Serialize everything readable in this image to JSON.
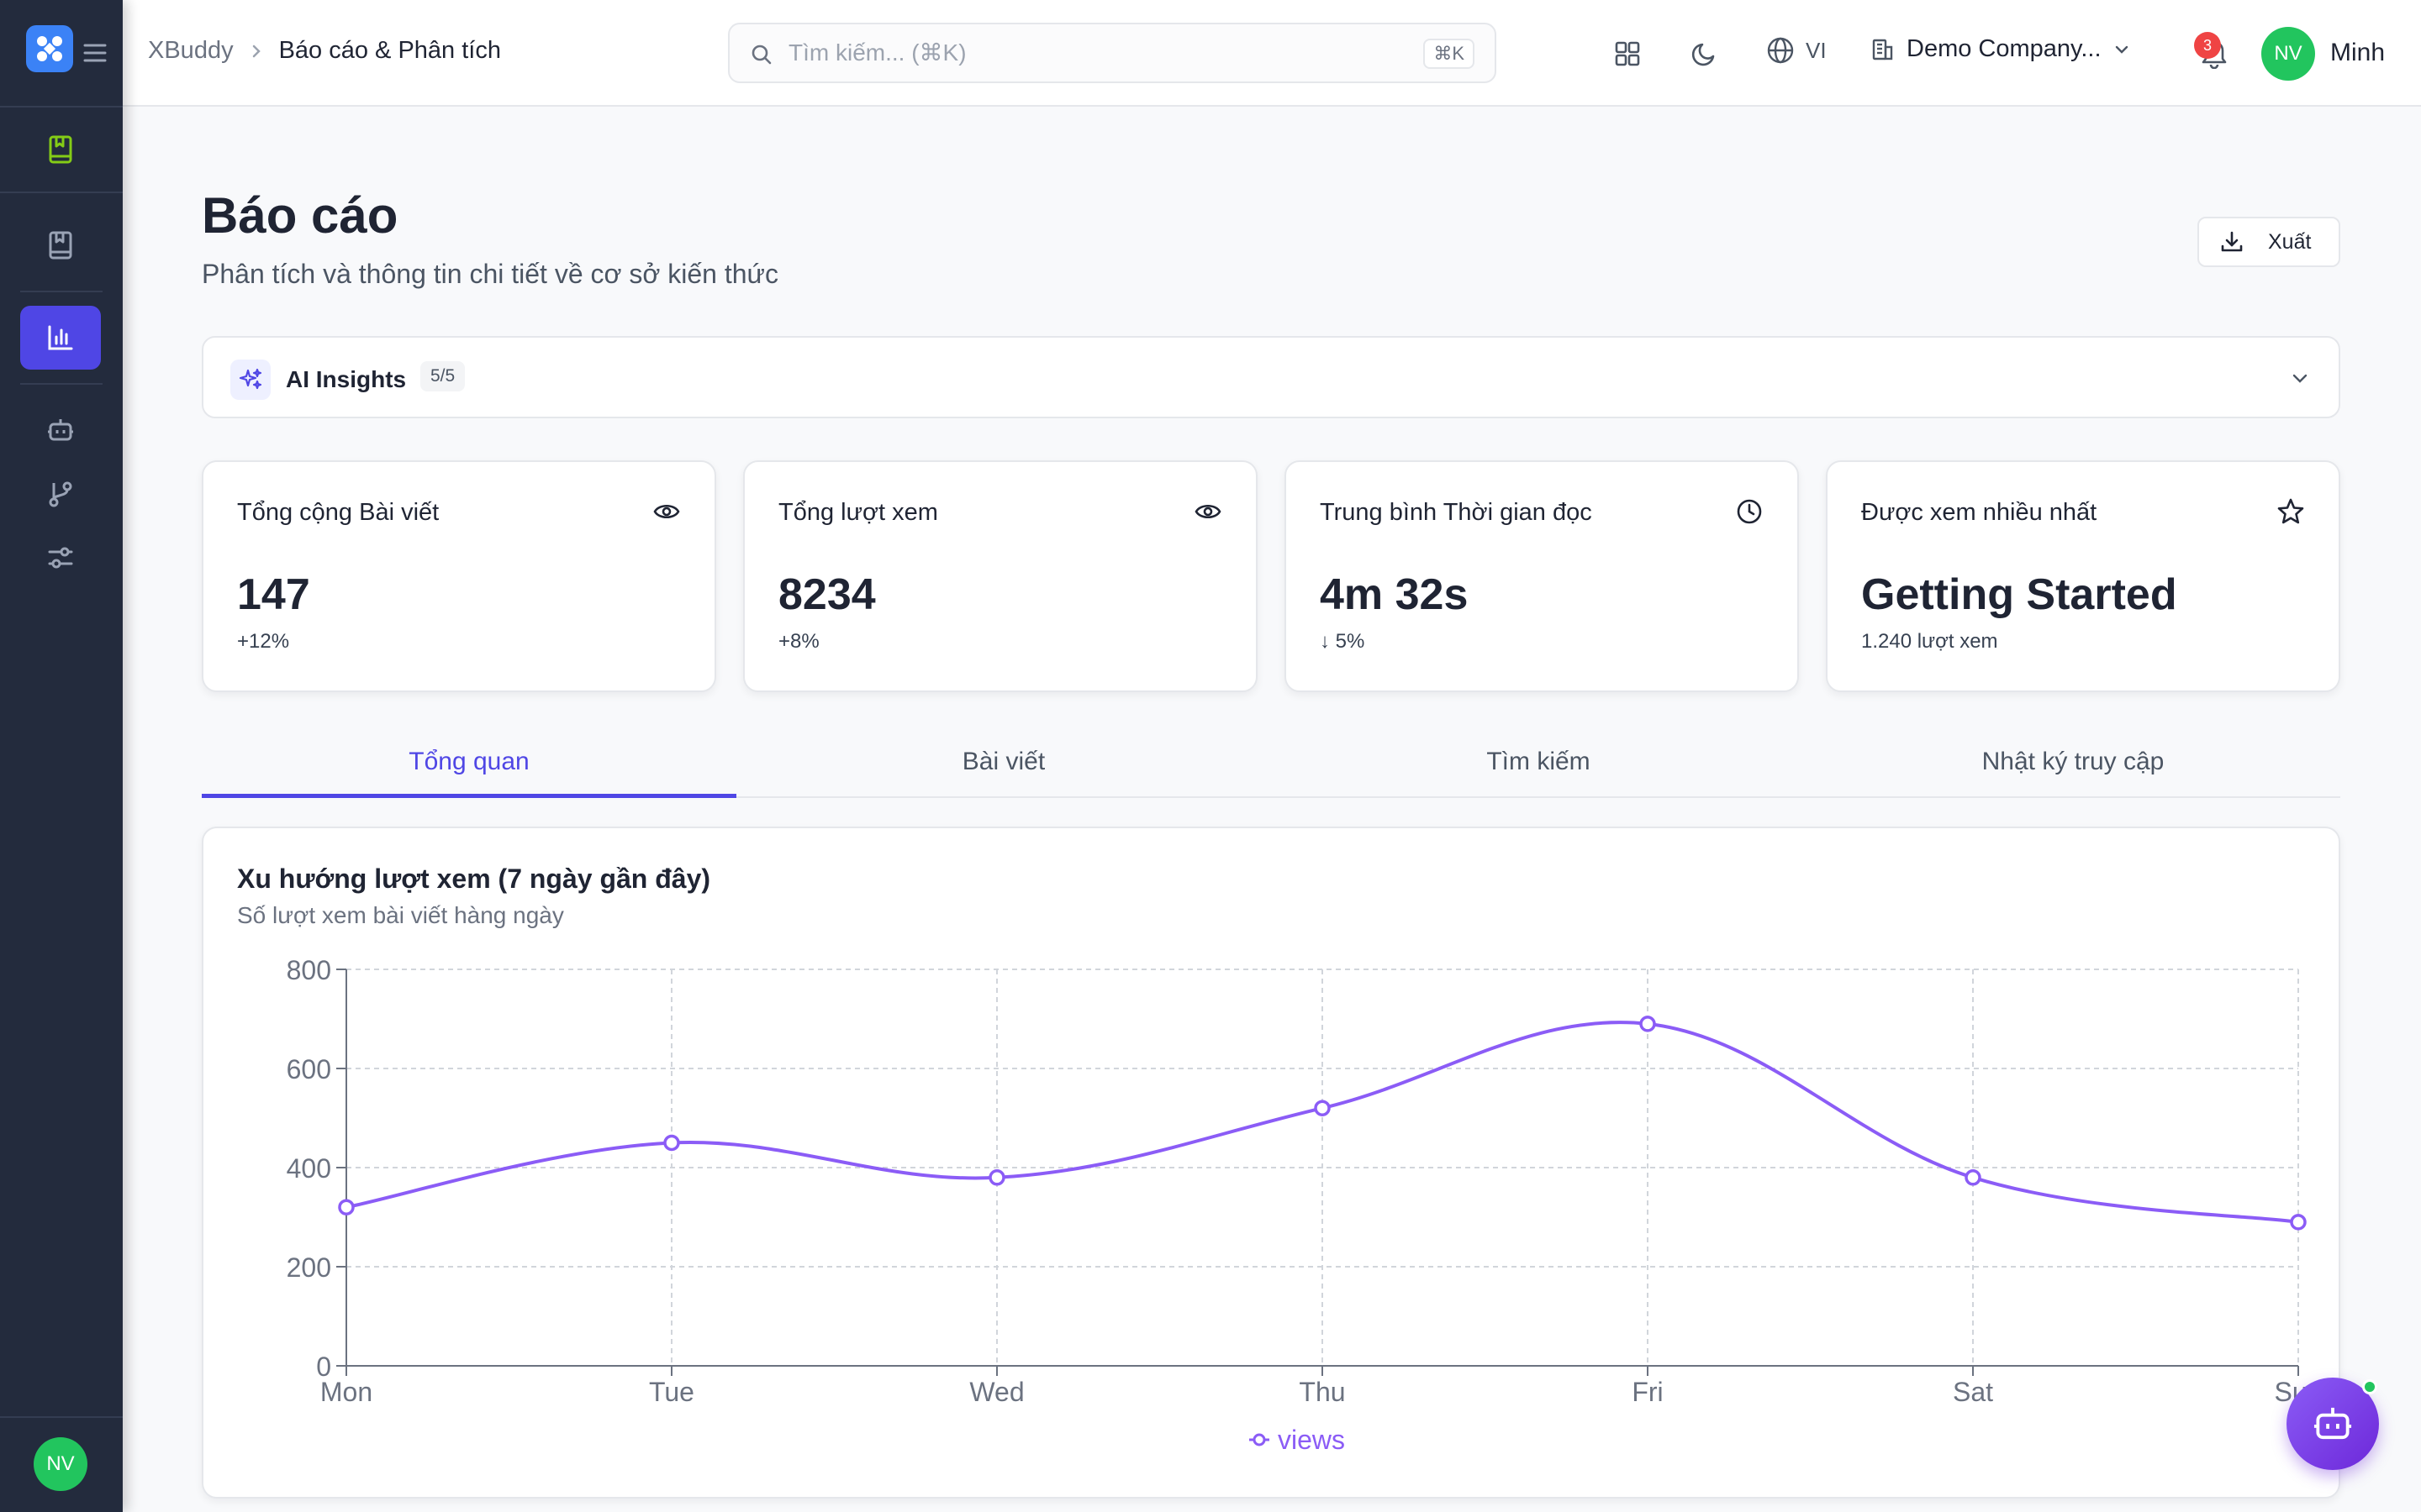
{
  "header": {
    "breadcrumb_root": "XBuddy",
    "breadcrumb_current": "Báo cáo & Phân tích",
    "search_placeholder": "Tìm kiếm... (⌘K)",
    "search_shortcut": "⌘K",
    "language": "VI",
    "company": "Demo Company...",
    "notification_count": "3",
    "user_initials": "NV",
    "user_name": "Minh"
  },
  "sidebar": {
    "avatar_initials": "NV",
    "items": [
      "knowledge-base",
      "articles",
      "reports",
      "bot",
      "workflows",
      "settings"
    ]
  },
  "page": {
    "title": "Báo cáo",
    "subtitle": "Phân tích và thông tin chi tiết về cơ sở kiến thức",
    "export_label": "Xuất"
  },
  "insights": {
    "title": "AI Insights",
    "count": "5/5"
  },
  "stats": [
    {
      "label": "Tổng cộng Bài viết",
      "value": "147",
      "delta": "+12%",
      "icon": "eye-icon"
    },
    {
      "label": "Tổng lượt xem",
      "value": "8234",
      "delta": "+8%",
      "icon": "eye-icon"
    },
    {
      "label": "Trung bình Thời gian đọc",
      "value": "4m 32s",
      "delta": "↓ 5%",
      "icon": "clock-icon"
    },
    {
      "label": "Được xem nhiều nhất",
      "value": "Getting Started",
      "delta": "1.240 lượt xem",
      "icon": "star-icon"
    }
  ],
  "tabs": [
    {
      "label": "Tổng quan",
      "active": true
    },
    {
      "label": "Bài viết",
      "active": false
    },
    {
      "label": "Tìm kiếm",
      "active": false
    },
    {
      "label": "Nhật ký truy cập",
      "active": false
    }
  ],
  "chart_panel": {
    "title": "Xu hướng lượt xem (7 ngày gần đây)",
    "subtitle": "Số lượt xem bài viết hàng ngày"
  },
  "colors": {
    "accent": "#4f46e5",
    "series": "#8b5cf6",
    "sidebar": "#232b3d"
  },
  "chart_data": {
    "type": "line",
    "categories": [
      "Mon",
      "Tue",
      "Wed",
      "Thu",
      "Fri",
      "Sat",
      "Sun"
    ],
    "series": [
      {
        "name": "views",
        "values": [
          320,
          450,
          380,
          520,
          690,
          380,
          290
        ]
      }
    ],
    "ylim": [
      0,
      800
    ],
    "yticks": [
      0,
      200,
      400,
      600,
      800
    ],
    "grid": true,
    "legend": "bottom-center"
  }
}
